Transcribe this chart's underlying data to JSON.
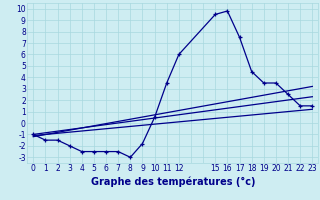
{
  "xlabel": "Graphe des températures (°c)",
  "background_color": "#ceedf2",
  "grid_color": "#a8d8df",
  "line_color": "#00008b",
  "xlim": [
    -0.5,
    23.5
  ],
  "ylim": [
    -3.5,
    10.5
  ],
  "x_tick_positions": [
    0,
    1,
    2,
    3,
    4,
    5,
    6,
    7,
    8,
    9,
    10,
    11,
    12,
    15,
    16,
    17,
    18,
    19,
    20,
    21,
    22,
    23
  ],
  "x_tick_labels": [
    "0",
    "1",
    "2",
    "3",
    "4",
    "5",
    "6",
    "7",
    "8",
    "9",
    "10",
    "11",
    "12",
    "15",
    "16",
    "17",
    "18",
    "19",
    "20",
    "21",
    "22",
    "23"
  ],
  "y_ticks": [
    -3,
    -2,
    -1,
    0,
    1,
    2,
    3,
    4,
    5,
    6,
    7,
    8,
    9,
    10
  ],
  "main_x": [
    0,
    1,
    2,
    3,
    4,
    5,
    6,
    7,
    8,
    9,
    10,
    11,
    12,
    15,
    16,
    17,
    18,
    19,
    20,
    21,
    22,
    23
  ],
  "main_y": [
    -1,
    -1.5,
    -1.5,
    -2.0,
    -2.5,
    -2.5,
    -2.5,
    -2.5,
    -3.0,
    -1.8,
    0.5,
    3.5,
    6.0,
    9.5,
    9.8,
    7.5,
    4.5,
    3.5,
    3.5,
    2.5,
    1.5,
    1.5
  ],
  "trend1_x": [
    0,
    23
  ],
  "trend1_y": [
    -1.2,
    3.2
  ],
  "trend2_x": [
    0,
    23
  ],
  "trend2_y": [
    -1.0,
    2.3
  ],
  "trend3_x": [
    0,
    23
  ],
  "trend3_y": [
    -1.1,
    1.2
  ],
  "xlabel_color": "#00008b",
  "xlabel_fontsize": 7,
  "tick_fontsize": 5.5
}
